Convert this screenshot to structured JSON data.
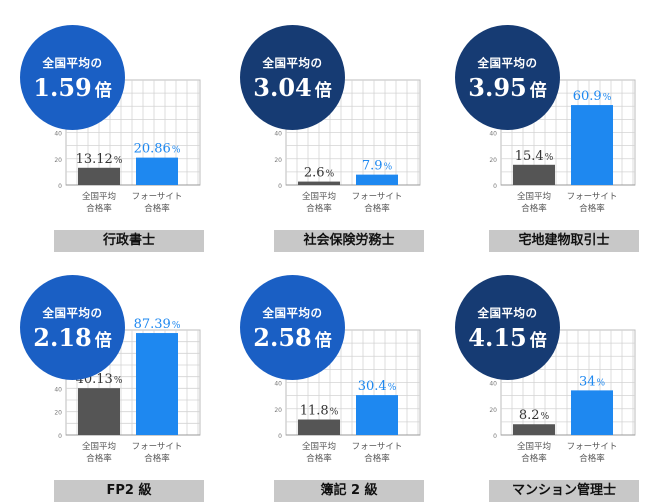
{
  "colors": {
    "badge_light": "#1a5fc4",
    "badge_dark": "#163b73",
    "avg_bar": "#555555",
    "foresight_bar": "#1e88f0",
    "avg_value_text": "#333333",
    "foresight_value_text": "#1e88f0",
    "label_bg": "#c8c8c8",
    "grid": "#d4d4d4"
  },
  "shared": {
    "y_ticks": [
      "0",
      "20",
      "40",
      "60",
      "80"
    ],
    "cat_avg": [
      "全国平均",
      "合格率"
    ],
    "cat_foresight": [
      "フォーサイト",
      "合格率"
    ],
    "badge_prefix": "全国平均の",
    "badge_suffix": "倍"
  },
  "chart_data": [
    {
      "type": "bar",
      "title": "行政書士",
      "categories": [
        "全国平均 合格率",
        "フォーサイト 合格率"
      ],
      "values": [
        13.12,
        20.86
      ],
      "value_labels": [
        "13.12",
        "20.86"
      ],
      "unit": "%",
      "ratio_label": "1.59",
      "ratio_unit": "倍",
      "ylim": [
        0,
        80
      ],
      "badge_color": "light"
    },
    {
      "type": "bar",
      "title": "社会保険労務士",
      "categories": [
        "全国平均 合格率",
        "フォーサイト 合格率"
      ],
      "values": [
        2.6,
        7.9
      ],
      "value_labels": [
        "2.6",
        "7.9"
      ],
      "unit": "%",
      "ratio_label": "3.04",
      "ratio_unit": "倍",
      "ylim": [
        0,
        80
      ],
      "badge_color": "dark"
    },
    {
      "type": "bar",
      "title": "宅地建物取引士",
      "categories": [
        "全国平均 合格率",
        "フォーサイト 合格率"
      ],
      "values": [
        15.4,
        60.9
      ],
      "value_labels": [
        "15.4",
        "60.9"
      ],
      "unit": "%",
      "ratio_label": "3.95",
      "ratio_unit": "倍",
      "ylim": [
        0,
        80
      ],
      "badge_color": "dark"
    },
    {
      "type": "bar",
      "title": "FP2 級",
      "categories": [
        "全国平均 合格率",
        "フォーサイト 合格率"
      ],
      "values": [
        40.13,
        87.39
      ],
      "value_labels": [
        "40.13",
        "87.39"
      ],
      "unit": "%",
      "ratio_label": "2.18",
      "ratio_unit": "倍",
      "ylim": [
        0,
        90
      ],
      "badge_color": "light"
    },
    {
      "type": "bar",
      "title": "簿記 2 級",
      "categories": [
        "全国平均 合格率",
        "フォーサイト 合格率"
      ],
      "values": [
        11.8,
        30.4
      ],
      "value_labels": [
        "11.8",
        "30.4"
      ],
      "unit": "%",
      "ratio_label": "2.58",
      "ratio_unit": "倍",
      "ylim": [
        0,
        80
      ],
      "badge_color": "light"
    },
    {
      "type": "bar",
      "title": "マンション管理士",
      "categories": [
        "全国平均 合格率",
        "フォーサイト 合格率"
      ],
      "values": [
        8.2,
        34
      ],
      "value_labels": [
        "8.2",
        "34"
      ],
      "unit": "%",
      "ratio_label": "4.15",
      "ratio_unit": "倍",
      "ylim": [
        0,
        80
      ],
      "badge_color": "dark"
    }
  ]
}
